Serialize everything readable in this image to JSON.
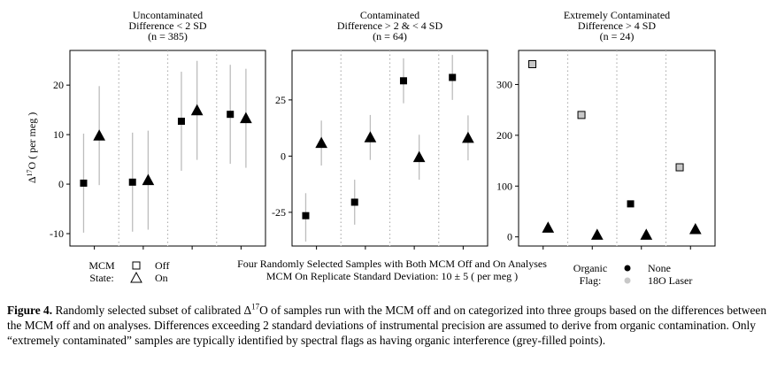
{
  "chart_data": {
    "type": "scatter",
    "ylabel": "Δ17O ( per meg )",
    "ylabel_sup": "17",
    "xlabel_lines": [
      "Four Randomly Selected Samples with Both MCM Off and On Analyses",
      "MCM On Replicate Standard Deviation: 10 ± 5 ( per meg )"
    ],
    "panels": [
      {
        "title_lines": [
          "Uncontaminated",
          "Difference < 2 SD",
          "(n = 385)"
        ],
        "ylim": [
          -12.5,
          27
        ],
        "yticks": [
          -10,
          0,
          10,
          20
        ],
        "samples": [
          {
            "off": {
              "y": 0.2,
              "lo": -9.8,
              "hi": 10.2,
              "flag": "None"
            },
            "on": {
              "y": 9.8,
              "lo": -0.2,
              "hi": 19.8
            }
          },
          {
            "off": {
              "y": 0.4,
              "lo": -9.6,
              "hi": 10.4,
              "flag": "None"
            },
            "on": {
              "y": 0.8,
              "lo": -9.2,
              "hi": 10.8
            }
          },
          {
            "off": {
              "y": 12.7,
              "lo": 2.7,
              "hi": 22.7,
              "flag": "None"
            },
            "on": {
              "y": 14.9,
              "lo": 4.9,
              "hi": 24.9
            }
          },
          {
            "off": {
              "y": 14.1,
              "lo": 4.1,
              "hi": 24.1,
              "flag": "None"
            },
            "on": {
              "y": 13.3,
              "lo": 3.3,
              "hi": 23.3
            }
          }
        ]
      },
      {
        "title_lines": [
          "Contaminated",
          "Difference > 2 & < 4 SD",
          "(n = 64)"
        ],
        "ylim": [
          -40,
          47
        ],
        "yticks": [
          -25,
          0,
          25
        ],
        "samples": [
          {
            "off": {
              "y": -26.5,
              "lo": -38,
              "hi": -16.5,
              "flag": "None"
            },
            "on": {
              "y": 5.8,
              "lo": -4.2,
              "hi": 15.8
            }
          },
          {
            "off": {
              "y": -20.5,
              "lo": -30.5,
              "hi": -10.5,
              "flag": "None"
            },
            "on": {
              "y": 8.3,
              "lo": -1.7,
              "hi": 18.3
            }
          },
          {
            "off": {
              "y": 33.5,
              "lo": 23.5,
              "hi": 43.5,
              "flag": "None"
            },
            "on": {
              "y": -0.5,
              "lo": -10.5,
              "hi": 9.5
            }
          },
          {
            "off": {
              "y": 35.0,
              "lo": 25.0,
              "hi": 45.0,
              "flag": "None"
            },
            "on": {
              "y": 8.1,
              "lo": -1.9,
              "hi": 18.1
            }
          }
        ]
      },
      {
        "title_lines": [
          "Extremely Contaminated",
          "Difference > 4 SD",
          "(n = 24)"
        ],
        "ylim": [
          -18,
          367
        ],
        "yticks": [
          0,
          100,
          200,
          300
        ],
        "samples": [
          {
            "off": {
              "y": 340,
              "flag": "18O Laser"
            },
            "on": {
              "y": 18
            }
          },
          {
            "off": {
              "y": 240,
              "flag": "18O Laser"
            },
            "on": {
              "y": 4
            }
          },
          {
            "off": {
              "y": 65,
              "flag": "None"
            },
            "on": {
              "y": 4
            }
          },
          {
            "off": {
              "y": 137,
              "flag": "18O Laser"
            },
            "on": {
              "y": 15
            }
          }
        ]
      }
    ],
    "legend_mcm": {
      "title_lines": [
        "MCM",
        "State:"
      ],
      "items": [
        "Off",
        "On"
      ]
    },
    "legend_flag": {
      "title_lines": [
        "Organic",
        "Flag:"
      ],
      "items": [
        "None",
        "18O Laser"
      ]
    },
    "colors": {
      "flag_none": "#000000",
      "flag_laser": "#c8c8c8",
      "errorbar": "#bdbdbd",
      "divider": "#b0b0b0"
    }
  },
  "caption": {
    "label": "Figure 4.",
    "text_before": "Randomly selected subset of calibrated Δ",
    "sup": "17",
    "text_after": "O of samples run with the MCM off and on categorized into three groups based on the differences between the MCM off and on analyses. Differences exceeding 2 standard deviations of instrumental precision are assumed to derive from organic contamination. Only “extremely contaminated” samples are typically identified by spectral flags as having organic interference (grey-filled points)."
  }
}
